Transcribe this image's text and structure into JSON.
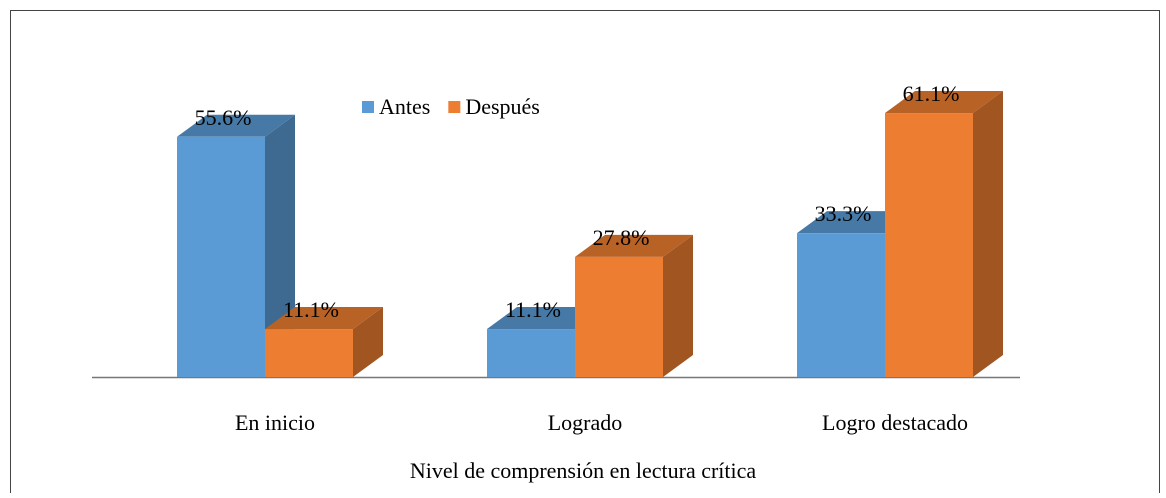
{
  "chart_data": {
    "type": "bar3d",
    "x_label": "Nivel  de  comprensión  en lectura  crítica",
    "categories": [
      "En inicio",
      "Logrado",
      "Logro destacado"
    ],
    "series": [
      {
        "name": "Antes",
        "color": "#5b9bd5",
        "values": [
          55.6,
          11.1,
          33.3
        ],
        "value_labels": [
          "55.6%",
          "11.1%",
          "33.3%"
        ]
      },
      {
        "name": "Después",
        "color": "#ed7d31",
        "values": [
          11.1,
          27.8,
          61.1
        ],
        "value_labels": [
          "11.1%",
          "27.8%",
          "61.1%"
        ]
      }
    ],
    "legend": "top"
  }
}
